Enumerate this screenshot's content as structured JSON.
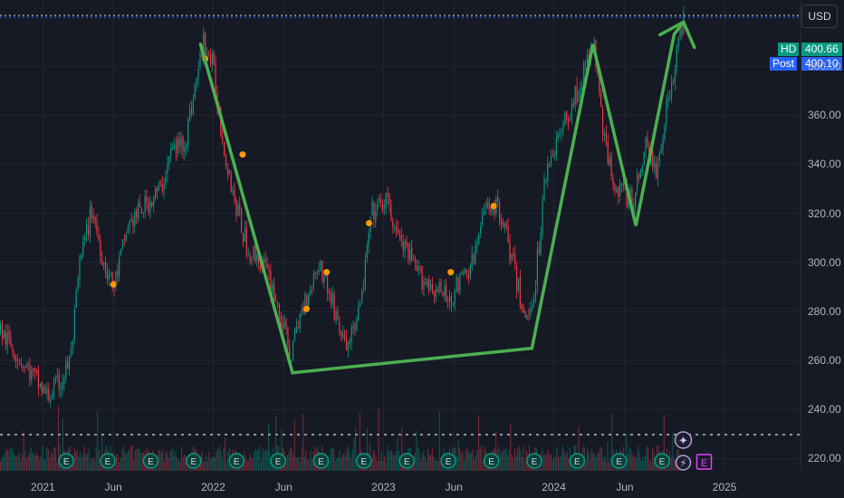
{
  "header": {
    "currency_label": "USD"
  },
  "price_tags": [
    {
      "label": "HD",
      "value": "400.66",
      "color": "#089981"
    },
    {
      "label": "Post",
      "value": "400.10",
      "color": "#2962ff"
    }
  ],
  "chart_data": {
    "type": "candlestick",
    "symbol": "HD",
    "currency": "USD",
    "ylim": [
      215,
      407
    ],
    "y_ticks": [
      {
        "label": "380.00",
        "value": 380
      },
      {
        "label": "360.00",
        "value": 360
      },
      {
        "label": "340.00",
        "value": 340
      },
      {
        "label": "320.00",
        "value": 320
      },
      {
        "label": "300.00",
        "value": 300
      },
      {
        "label": "280.00",
        "value": 280
      },
      {
        "label": "260.00",
        "value": 260
      },
      {
        "label": "240.00",
        "value": 240
      },
      {
        "label": "220.00",
        "value": 220
      }
    ],
    "x_range": [
      "2020-10-01",
      "2025-06-05"
    ],
    "x_ticks": [
      {
        "label": "2021",
        "date": "2021-01-01"
      },
      {
        "label": "Jun",
        "date": "2021-06-01"
      },
      {
        "label": "2022",
        "date": "2022-01-01"
      },
      {
        "label": "Jun",
        "date": "2022-06-01"
      },
      {
        "label": "2023",
        "date": "2023-01-01"
      },
      {
        "label": "Jun",
        "date": "2023-06-01"
      },
      {
        "label": "2024",
        "date": "2024-01-01"
      },
      {
        "label": "Jun",
        "date": "2024-06-01"
      },
      {
        "label": "2025",
        "date": "2025-01-01"
      }
    ],
    "price_path": [
      [
        "2020-10-01",
        272
      ],
      [
        "2020-11-15",
        260
      ],
      [
        "2021-01-10",
        245
      ],
      [
        "2021-02-10",
        252
      ],
      [
        "2021-03-01",
        262
      ],
      [
        "2021-03-20",
        300
      ],
      [
        "2021-04-15",
        322
      ],
      [
        "2021-05-10",
        300
      ],
      [
        "2021-06-01",
        290
      ],
      [
        "2021-07-01",
        315
      ],
      [
        "2021-08-15",
        325
      ],
      [
        "2021-09-10",
        330
      ],
      [
        "2021-10-01",
        345
      ],
      [
        "2021-11-01",
        350
      ],
      [
        "2021-12-10",
        390
      ],
      [
        "2021-12-30",
        380
      ],
      [
        "2022-01-20",
        350
      ],
      [
        "2022-02-15",
        325
      ],
      [
        "2022-03-15",
        305
      ],
      [
        "2022-04-15",
        300
      ],
      [
        "2022-05-10",
        288
      ],
      [
        "2022-06-15",
        262
      ],
      [
        "2022-07-10",
        282
      ],
      [
        "2022-08-15",
        300
      ],
      [
        "2022-09-15",
        282
      ],
      [
        "2022-10-10",
        265
      ],
      [
        "2022-11-10",
        280
      ],
      [
        "2022-12-05",
        320
      ],
      [
        "2023-01-05",
        325
      ],
      [
        "2023-02-01",
        310
      ],
      [
        "2023-03-15",
        295
      ],
      [
        "2023-04-15",
        290
      ],
      [
        "2023-05-20",
        285
      ],
      [
        "2023-07-10",
        300
      ],
      [
        "2023-08-10",
        325
      ],
      [
        "2023-09-10",
        320
      ],
      [
        "2023-10-15",
        290
      ],
      [
        "2023-11-01",
        275
      ],
      [
        "2023-11-20",
        290
      ],
      [
        "2023-12-15",
        340
      ],
      [
        "2024-01-20",
        355
      ],
      [
        "2024-03-01",
        375
      ],
      [
        "2024-03-25",
        390
      ],
      [
        "2024-04-20",
        345
      ],
      [
        "2024-05-15",
        330
      ],
      [
        "2024-06-20",
        325
      ],
      [
        "2024-07-15",
        350
      ],
      [
        "2024-08-05",
        335
      ],
      [
        "2024-08-25",
        360
      ],
      [
        "2024-09-20",
        385
      ],
      [
        "2024-10-05",
        400.66
      ]
    ],
    "dividend_markers": [
      [
        "2021-06-01",
        291
      ],
      [
        "2021-12-15",
        383
      ],
      [
        "2022-03-05",
        344
      ],
      [
        "2022-07-20",
        281
      ],
      [
        "2022-09-01",
        296
      ],
      [
        "2022-12-01",
        316
      ],
      [
        "2023-05-25",
        296
      ],
      [
        "2023-08-25",
        323
      ]
    ],
    "trend_lines": [
      [
        "2021-12-05",
        389
      ],
      [
        "2022-06-20",
        255
      ],
      [
        "2023-11-15",
        265
      ],
      [
        "2024-03-25",
        389
      ],
      [
        "2024-06-25",
        315
      ],
      [
        "2024-09-15",
        393
      ],
      [
        "2024-10-05",
        398
      ]
    ],
    "earnings_markers": [
      "2021-02-20",
      "2021-05-20",
      "2021-08-20",
      "2021-11-20",
      "2022-02-20",
      "2022-05-20",
      "2022-08-20",
      "2022-11-20",
      "2023-02-20",
      "2023-05-20",
      "2023-08-20",
      "2023-11-20",
      "2024-02-20",
      "2024-05-20",
      "2024-08-20"
    ],
    "upcoming_earnings_marker": "2024-11-20",
    "colors": {
      "up": "#089981",
      "down": "#f23645",
      "trend": "#4caf50",
      "dividend": "#ff9800",
      "earnings": "#e040fb",
      "grid": "#232632",
      "background": "#161a25"
    }
  }
}
